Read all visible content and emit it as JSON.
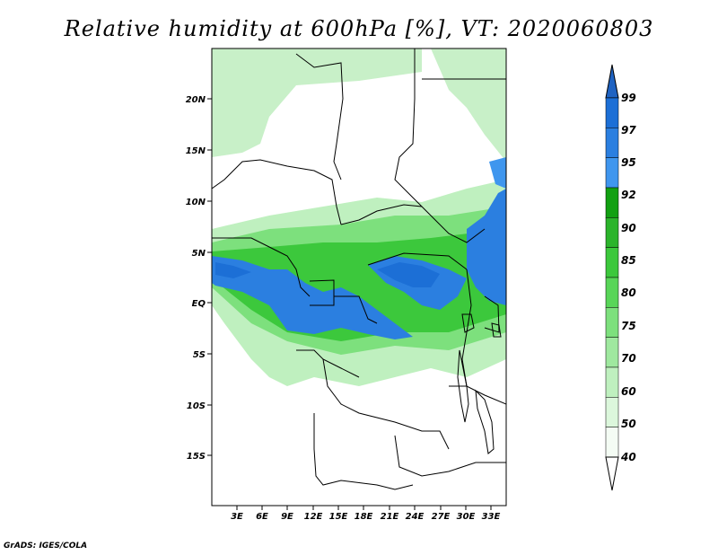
{
  "title": "Relative humidity at 600hPa [%], VT: 2020060803",
  "footer": "GrADS: IGES/COLA",
  "map": {
    "x_ticks": [
      "3E",
      "6E",
      "9E",
      "12E",
      "15E",
      "18E",
      "21E",
      "24E",
      "27E",
      "30E",
      "33E"
    ],
    "y_ticks": [
      "20N",
      "15N",
      "10N",
      "5N",
      "EQ",
      "5S",
      "10S",
      "15S"
    ]
  },
  "colorbar": {
    "levels": [
      "99",
      "97",
      "95",
      "92",
      "90",
      "85",
      "80",
      "75",
      "70",
      "60",
      "50",
      "40"
    ],
    "colors": [
      "#1c6fd6",
      "#2b7fe0",
      "#3f96ee",
      "#12a012",
      "#2bb42b",
      "#3cc83c",
      "#58d558",
      "#7de07d",
      "#9fe89f",
      "#bff0bf",
      "#dcf7dc",
      "#f4fcf4",
      "#ffffff"
    ],
    "top_color": "#1f63c2"
  }
}
